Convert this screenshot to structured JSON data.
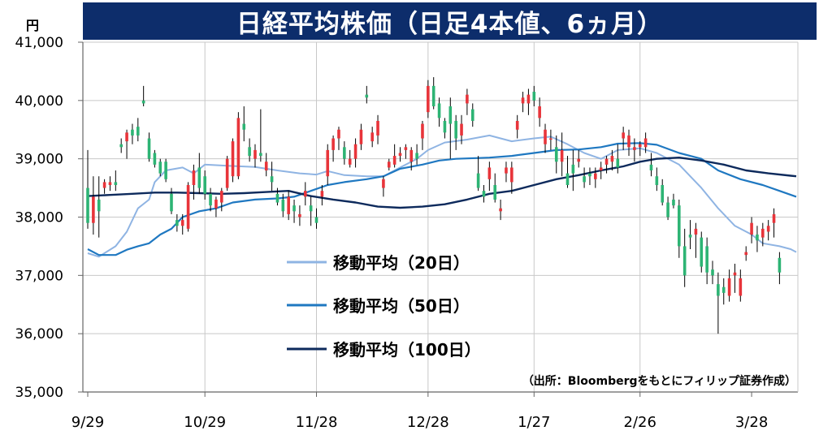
{
  "chart_data": {
    "type": "candlestick",
    "title": "日経平均株価（日足4本値、6ヵ月）",
    "y_unit": "円",
    "ylim": [
      35000,
      41000
    ],
    "y_ticks": [
      "35,000",
      "36,000",
      "37,000",
      "38,000",
      "39,000",
      "40,000",
      "41,000"
    ],
    "y_tick_values": [
      35000,
      36000,
      37000,
      38000,
      39000,
      40000,
      41000
    ],
    "x_ticks": [
      "9/29",
      "10/29",
      "11/28",
      "12/28",
      "1/27",
      "2/26",
      "3/28"
    ],
    "x_tick_index": [
      0,
      21,
      41,
      61,
      80,
      99,
      119
    ],
    "source": "（出所：Bloombergをもとにフィリップ証券作成）",
    "legend": [
      {
        "label": "移動平均（20日）",
        "color": "#8fb4e3"
      },
      {
        "label": "移動平均（50日）",
        "color": "#1f78c1"
      },
      {
        "label": "移動平均（100日）",
        "color": "#0d2a5c"
      }
    ],
    "colors": {
      "up": "#e8343a",
      "down": "#2db474",
      "wick": "#000000",
      "grid": "#c8c8c8"
    },
    "candles": [
      [
        38500,
        39150,
        37800,
        37900
      ],
      [
        37900,
        38700,
        37700,
        38350
      ],
      [
        38300,
        38700,
        37650,
        38100
      ],
      [
        38500,
        38650,
        38400,
        38600
      ],
      [
        38550,
        38700,
        38450,
        38600
      ],
      [
        38600,
        38800,
        38450,
        38550
      ],
      [
        39250,
        39350,
        39100,
        39200
      ],
      [
        39300,
        39500,
        39000,
        39450
      ],
      [
        39500,
        39600,
        39250,
        39400
      ],
      [
        39550,
        39700,
        39300,
        39400
      ],
      [
        40000,
        40250,
        39900,
        39950
      ],
      [
        39350,
        39450,
        38950,
        39000
      ],
      [
        39100,
        39150,
        38850,
        38900
      ],
      [
        38950,
        39000,
        38700,
        38750
      ],
      [
        38950,
        39000,
        38600,
        38650
      ],
      [
        38400,
        38500,
        38050,
        38100
      ],
      [
        37950,
        38050,
        37750,
        37850
      ],
      [
        37850,
        38050,
        37700,
        37950
      ],
      [
        37800,
        38600,
        37750,
        38550
      ],
      [
        38550,
        38900,
        38300,
        38800
      ],
      [
        38850,
        39100,
        38400,
        38500
      ],
      [
        38700,
        38800,
        38300,
        38400
      ],
      [
        38400,
        38500,
        38100,
        38200
      ],
      [
        38150,
        38350,
        38000,
        38300
      ],
      [
        38250,
        38500,
        38100,
        38450
      ],
      [
        38500,
        39050,
        38450,
        39000
      ],
      [
        38700,
        39350,
        38600,
        39300
      ],
      [
        38700,
        39800,
        38650,
        39700
      ],
      [
        39600,
        39900,
        39300,
        39500
      ],
      [
        39200,
        39350,
        38950,
        39050
      ],
      [
        39000,
        39250,
        38850,
        39150
      ],
      [
        39100,
        39850,
        38950,
        39050
      ],
      [
        38800,
        39100,
        38700,
        38950
      ],
      [
        38700,
        38950,
        38450,
        38600
      ],
      [
        38400,
        38500,
        38200,
        38250
      ],
      [
        38300,
        38400,
        38000,
        38100
      ],
      [
        38050,
        38450,
        37950,
        38350
      ],
      [
        38200,
        38300,
        37900,
        38100
      ],
      [
        38000,
        38200,
        37850,
        38050
      ],
      [
        38350,
        38600,
        38200,
        38450
      ],
      [
        38200,
        38350,
        37850,
        38100
      ],
      [
        38000,
        38150,
        37800,
        37900
      ],
      [
        38350,
        38550,
        38200,
        38450
      ],
      [
        38700,
        39250,
        38550,
        39150
      ],
      [
        39150,
        39400,
        38950,
        39350
      ],
      [
        39350,
        39550,
        39150,
        39500
      ],
      [
        39200,
        39300,
        38900,
        39000
      ],
      [
        38900,
        39150,
        38850,
        39000
      ],
      [
        39000,
        39350,
        38850,
        39250
      ],
      [
        39250,
        39600,
        39150,
        39500
      ],
      [
        40100,
        40250,
        39950,
        40050
      ],
      [
        39300,
        39550,
        39200,
        39450
      ],
      [
        39400,
        39750,
        39250,
        39650
      ],
      [
        38500,
        38700,
        38350,
        38650
      ],
      [
        38850,
        39000,
        38800,
        38950
      ],
      [
        38900,
        39250,
        38850,
        39050
      ],
      [
        39050,
        39200,
        38950,
        39100
      ],
      [
        39150,
        39250,
        39000,
        39200
      ],
      [
        38950,
        39200,
        38800,
        39150
      ],
      [
        39100,
        39250,
        38900,
        39000
      ],
      [
        39350,
        39650,
        39150,
        39600
      ],
      [
        39800,
        40350,
        39700,
        40250
      ],
      [
        40250,
        40400,
        39850,
        39900
      ],
      [
        39950,
        40050,
        39550,
        39700
      ],
      [
        39650,
        39700,
        39350,
        39450
      ],
      [
        39900,
        40050,
        39000,
        39600
      ],
      [
        39650,
        39750,
        39150,
        39350
      ],
      [
        39400,
        39750,
        39250,
        39600
      ],
      [
        39950,
        40200,
        39750,
        40100
      ],
      [
        39850,
        39950,
        39550,
        39650
      ],
      [
        38750,
        39050,
        38450,
        38500
      ],
      [
        38450,
        38550,
        38250,
        38350
      ],
      [
        38650,
        38950,
        38450,
        38850
      ],
      [
        38550,
        38750,
        38250,
        38300
      ],
      [
        38100,
        38300,
        37950,
        38150
      ],
      [
        38750,
        38950,
        38600,
        38850
      ],
      [
        38600,
        38950,
        38400,
        38850
      ],
      [
        39500,
        39750,
        39350,
        39650
      ],
      [
        39950,
        40150,
        39800,
        40050
      ],
      [
        39950,
        40200,
        39750,
        40100
      ],
      [
        40150,
        40250,
        39900,
        40000
      ],
      [
        39700,
        40050,
        39550,
        39900
      ],
      [
        39250,
        39600,
        39100,
        39500
      ],
      [
        39350,
        39500,
        39150,
        39350
      ],
      [
        39200,
        39400,
        38750,
        38950
      ],
      [
        38950,
        39450,
        38700,
        39150
      ],
      [
        38750,
        39050,
        38500,
        38550
      ],
      [
        38900,
        39150,
        38450,
        38750
      ],
      [
        38950,
        39150,
        38850,
        39000
      ],
      [
        38700,
        38850,
        38500,
        38600
      ],
      [
        38750,
        38850,
        38550,
        38700
      ],
      [
        38650,
        38850,
        38500,
        38750
      ],
      [
        38800,
        38950,
        38650,
        38850
      ],
      [
        38900,
        39050,
        38750,
        39000
      ],
      [
        38950,
        39150,
        38800,
        39050
      ],
      [
        39000,
        39250,
        38750,
        38850
      ],
      [
        39350,
        39550,
        39150,
        39450
      ],
      [
        39200,
        39500,
        39050,
        39400
      ],
      [
        39150,
        39350,
        38950,
        39200
      ],
      [
        39200,
        39300,
        39050,
        39250
      ],
      [
        39200,
        39450,
        39100,
        39350
      ],
      [
        38900,
        39100,
        38700,
        38800
      ],
      [
        38700,
        38850,
        38450,
        38550
      ],
      [
        38550,
        38650,
        38200,
        38250
      ],
      [
        38250,
        38350,
        37950,
        38000
      ],
      [
        38300,
        38400,
        38150,
        38200
      ],
      [
        38200,
        38300,
        37300,
        37500
      ],
      [
        37500,
        37800,
        36800,
        37000
      ],
      [
        37700,
        37950,
        37450,
        37650
      ],
      [
        37700,
        37900,
        37300,
        37800
      ],
      [
        37650,
        37750,
        37050,
        37150
      ],
      [
        37500,
        37650,
        36850,
        37050
      ],
      [
        37100,
        37250,
        36850,
        37000
      ],
      [
        36850,
        37050,
        36000,
        36650
      ],
      [
        36800,
        36950,
        36500,
        36700
      ],
      [
        36650,
        37100,
        36550,
        36950
      ],
      [
        37000,
        37200,
        36700,
        37050
      ],
      [
        36650,
        37100,
        36550,
        36950
      ],
      [
        37350,
        37500,
        37250,
        37400
      ],
      [
        37700,
        38000,
        37550,
        37900
      ],
      [
        37700,
        37850,
        37400,
        37600
      ],
      [
        37650,
        37900,
        37500,
        37800
      ],
      [
        37750,
        37950,
        37600,
        37850
      ],
      [
        37900,
        38150,
        37650,
        38050
      ],
      [
        37300,
        37400,
        36850,
        37050
      ]
    ],
    "ma20": [
      [
        0,
        37380
      ],
      [
        2,
        37320
      ],
      [
        5,
        37500
      ],
      [
        7,
        37750
      ],
      [
        9,
        38150
      ],
      [
        11,
        38300
      ],
      [
        12,
        38600
      ],
      [
        14,
        38800
      ],
      [
        17,
        38850
      ],
      [
        19,
        38750
      ],
      [
        21,
        38900
      ],
      [
        25,
        38880
      ],
      [
        30,
        38860
      ],
      [
        34,
        38800
      ],
      [
        38,
        38750
      ],
      [
        41,
        38730
      ],
      [
        43,
        38790
      ],
      [
        46,
        38720
      ],
      [
        50,
        38700
      ],
      [
        53,
        38700
      ],
      [
        56,
        38850
      ],
      [
        59,
        39000
      ],
      [
        61,
        39150
      ],
      [
        64,
        39280
      ],
      [
        68,
        39330
      ],
      [
        72,
        39400
      ],
      [
        76,
        39300
      ],
      [
        80,
        39350
      ],
      [
        83,
        39380
      ],
      [
        86,
        39250
      ],
      [
        89,
        39100
      ],
      [
        92,
        39000
      ],
      [
        95,
        39150
      ],
      [
        99,
        39180
      ],
      [
        102,
        39100
      ],
      [
        106,
        38900
      ],
      [
        110,
        38500
      ],
      [
        113,
        38150
      ],
      [
        116,
        37850
      ],
      [
        119,
        37700
      ],
      [
        121,
        37550
      ],
      [
        124,
        37500
      ],
      [
        126,
        37450
      ],
      [
        127,
        37400
      ]
    ],
    "ma50": [
      [
        0,
        37450
      ],
      [
        2,
        37350
      ],
      [
        5,
        37350
      ],
      [
        7,
        37440
      ],
      [
        9,
        37500
      ],
      [
        11,
        37550
      ],
      [
        13,
        37700
      ],
      [
        15,
        37800
      ],
      [
        17,
        38000
      ],
      [
        20,
        38100
      ],
      [
        23,
        38150
      ],
      [
        26,
        38250
      ],
      [
        30,
        38300
      ],
      [
        34,
        38320
      ],
      [
        37,
        38350
      ],
      [
        40,
        38450
      ],
      [
        43,
        38550
      ],
      [
        46,
        38600
      ],
      [
        50,
        38650
      ],
      [
        53,
        38700
      ],
      [
        56,
        38830
      ],
      [
        60,
        38900
      ],
      [
        63,
        38970
      ],
      [
        66,
        39000
      ],
      [
        72,
        39020
      ],
      [
        76,
        39050
      ],
      [
        80,
        39100
      ],
      [
        84,
        39150
      ],
      [
        88,
        39160
      ],
      [
        92,
        39200
      ],
      [
        95,
        39260
      ],
      [
        99,
        39270
      ],
      [
        102,
        39240
      ],
      [
        106,
        39100
      ],
      [
        110,
        39000
      ],
      [
        113,
        38800
      ],
      [
        117,
        38650
      ],
      [
        121,
        38550
      ],
      [
        124,
        38450
      ],
      [
        127,
        38350
      ]
    ],
    "ma100": [
      [
        0,
        38360
      ],
      [
        4,
        38380
      ],
      [
        8,
        38400
      ],
      [
        12,
        38420
      ],
      [
        16,
        38420
      ],
      [
        20,
        38410
      ],
      [
        24,
        38400
      ],
      [
        28,
        38410
      ],
      [
        32,
        38430
      ],
      [
        36,
        38450
      ],
      [
        40,
        38360
      ],
      [
        44,
        38300
      ],
      [
        48,
        38250
      ],
      [
        52,
        38180
      ],
      [
        56,
        38160
      ],
      [
        60,
        38180
      ],
      [
        64,
        38220
      ],
      [
        68,
        38300
      ],
      [
        72,
        38400
      ],
      [
        76,
        38450
      ],
      [
        80,
        38550
      ],
      [
        84,
        38650
      ],
      [
        88,
        38720
      ],
      [
        92,
        38800
      ],
      [
        96,
        38870
      ],
      [
        99,
        38950
      ],
      [
        102,
        39000
      ],
      [
        106,
        39020
      ],
      [
        110,
        38970
      ],
      [
        114,
        38900
      ],
      [
        118,
        38800
      ],
      [
        122,
        38750
      ],
      [
        126,
        38710
      ],
      [
        127,
        38700
      ]
    ]
  }
}
